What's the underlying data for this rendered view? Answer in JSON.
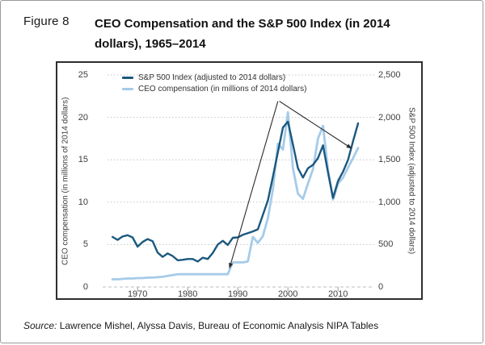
{
  "figure": {
    "label": "Figure 8",
    "title": "CEO Compensation and the S&P 500 Index (in 2014 dollars), 1965–2014",
    "source_prefix": "Source:",
    "source_text": "Lawrence Mishel, Alyssa Davis, Bureau of Economic Analysis NIPA Tables"
  },
  "colors": {
    "sp500_line": "#1b587f",
    "ceo_line": "#a5cbe9",
    "gridline": "#c4c4c4",
    "zero_line": "#bdbdbd",
    "tick_mark": "#999999",
    "annotation": "#2b2b2b",
    "chart_border": "#2e2e2e",
    "figure_border": "#9a9a9a"
  },
  "chart_data": {
    "type": "line",
    "title": "CEO Compensation and the S&P 500 Index (in 2014 dollars), 1965-2014",
    "x": [
      1965,
      1966,
      1967,
      1968,
      1969,
      1970,
      1971,
      1972,
      1973,
      1974,
      1975,
      1976,
      1977,
      1978,
      1979,
      1980,
      1981,
      1982,
      1983,
      1984,
      1985,
      1986,
      1987,
      1988,
      1989,
      1990,
      1991,
      1992,
      1993,
      1994,
      1995,
      1996,
      1997,
      1998,
      1999,
      2000,
      2001,
      2002,
      2003,
      2004,
      2005,
      2006,
      2007,
      2008,
      2009,
      2010,
      2011,
      2012,
      2013,
      2014
    ],
    "series": [
      {
        "name": "S&P 500 Index (adjusted to 2014 dollars)",
        "axis": "right",
        "color": "#1b587f",
        "stroke_width": 2.4,
        "values": [
          590,
          555,
          595,
          610,
          585,
          475,
          530,
          565,
          540,
          405,
          355,
          395,
          365,
          315,
          320,
          330,
          330,
          300,
          345,
          330,
          400,
          500,
          545,
          495,
          580,
          585,
          615,
          635,
          655,
          680,
          850,
          1020,
          1300,
          1590,
          1880,
          1950,
          1680,
          1400,
          1290,
          1400,
          1440,
          1520,
          1670,
          1350,
          1050,
          1250,
          1360,
          1500,
          1720,
          1930
        ]
      },
      {
        "name": "CEO compensation (in millions of 2014 dollars)",
        "axis": "left",
        "color": "#a5cbe9",
        "stroke_width": 2.8,
        "values": [
          0.9,
          0.9,
          0.95,
          1.0,
          1.0,
          1.05,
          1.05,
          1.1,
          1.1,
          1.15,
          1.2,
          1.3,
          1.4,
          1.5,
          1.5,
          1.5,
          1.5,
          1.5,
          1.5,
          1.5,
          1.5,
          1.5,
          1.5,
          1.5,
          2.9,
          2.9,
          2.9,
          3.0,
          5.9,
          5.2,
          6.0,
          8.1,
          11.5,
          16.9,
          16.2,
          20.6,
          14.0,
          11.0,
          10.4,
          12.2,
          13.9,
          17.5,
          19.0,
          13.8,
          10.3,
          12.2,
          12.9,
          14.1,
          15.2,
          16.4
        ]
      }
    ],
    "left_axis": {
      "label": "CEO compensation (in millions of 2014 dollars)",
      "range": [
        0,
        25
      ],
      "ticks": [
        0,
        5,
        10,
        15,
        20,
        25
      ]
    },
    "right_axis": {
      "label": "S&P 500 Index (adjusted to 2014 dollars)",
      "range": [
        0,
        2500
      ],
      "tick_labels": [
        "0",
        "500",
        "1,000",
        "1,500",
        "2,000",
        "2,500"
      ]
    },
    "x_axis": {
      "range": [
        1964,
        2016.5
      ],
      "ticks": [
        1970,
        1980,
        1990,
        2000,
        2010
      ]
    },
    "grid": "horizontal dotted",
    "legend_position": "top-left inside plot",
    "annotations": [
      {
        "from": {
          "year": 1998.0,
          "left_value": 21.9
        },
        "to": {
          "year": 1988.3,
          "left_value": 2.15
        }
      },
      {
        "from": {
          "year": 1998.3,
          "left_value": 21.9
        },
        "to": {
          "year": 2012.8,
          "left_value": 16.3
        }
      }
    ]
  }
}
